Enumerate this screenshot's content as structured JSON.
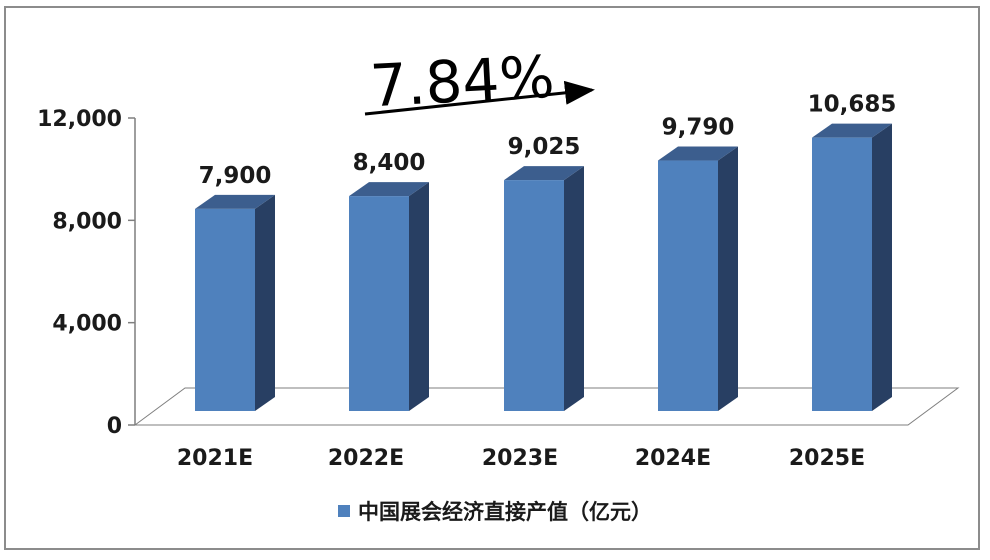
{
  "chart_data": {
    "type": "bar",
    "categories": [
      "2021E",
      "2022E",
      "2023E",
      "2024E",
      "2025E"
    ],
    "series": [
      {
        "name": "中国展会经济直接产值（亿元）",
        "values": [
          7900,
          8400,
          9025,
          9790,
          10685
        ],
        "value_labels": [
          "7,900",
          "8,400",
          "9,025",
          "9,790",
          "10,685"
        ],
        "color": "#4f81bd"
      }
    ],
    "yaxis": {
      "ylim": [
        0,
        12000
      ],
      "ticks": [
        0,
        4000,
        8000,
        12000
      ],
      "tick_labels": [
        "0",
        "4,000",
        "8,000",
        "12,000"
      ]
    },
    "annotation": "7.84%",
    "legend_position": "bottom",
    "grid": false,
    "style": "3d-column"
  }
}
